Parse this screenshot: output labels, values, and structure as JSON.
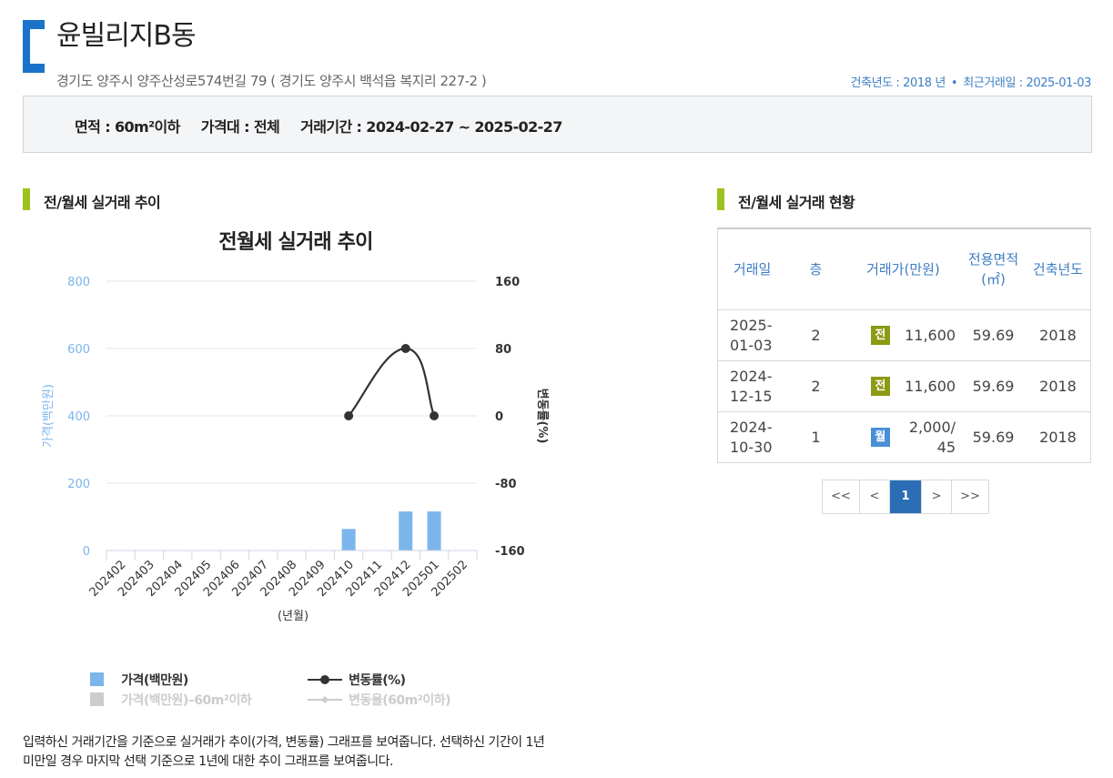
{
  "header": {
    "title": "윤빌리지B동",
    "address": "경기도 양주시 양주산성로574번길 79 ( 경기도 양주시 백석읍 복지리 227-2 )",
    "built_year": "건축년도 : 2018 년",
    "separator": "•",
    "last_trade": "최근거래일 : 2025-01-03"
  },
  "filter": {
    "area": "면적 :  60m²이하",
    "price": "가격대 :  전체",
    "period": "거래기간 :  2024-02-27 ~ 2025-02-27"
  },
  "trend_section": {
    "heading": "전/월세 실거래 추이",
    "chart_title": "전월세 실거래 추이"
  },
  "chart_data": {
    "type": "bar",
    "title": "전월세 실거래 추이",
    "categories": [
      "202402",
      "202403",
      "202404",
      "202405",
      "202406",
      "202407",
      "202408",
      "202409",
      "202410",
      "202411",
      "202412",
      "202501",
      "202502"
    ],
    "xlabel": "(년월)",
    "ylabel": "가격(백만원)",
    "y2label": "변동률(%)",
    "ylim": [
      0,
      800
    ],
    "yticks": [
      "800",
      "600",
      "400",
      "200",
      "0"
    ],
    "y2lim": [
      -160,
      160
    ],
    "y2ticks": [
      "160",
      "80",
      "0",
      "-80",
      "-160"
    ],
    "series": [
      {
        "name": "가격(백만원)",
        "type": "bar",
        "color": "#7cb5ec",
        "values": [
          null,
          null,
          null,
          null,
          null,
          null,
          null,
          null,
          64,
          null,
          116,
          116,
          null
        ]
      },
      {
        "name": "변동률(%)",
        "type": "line",
        "axis": "right",
        "color": "#333333",
        "values": [
          null,
          null,
          null,
          null,
          null,
          null,
          null,
          null,
          0,
          null,
          80,
          0,
          null
        ]
      }
    ],
    "legend": [
      {
        "label": "가격(백만원)",
        "color": "#7cb5ec",
        "kind": "square"
      },
      {
        "label": "변동률(%)",
        "color": "#333333",
        "kind": "line"
      },
      {
        "label": "가격(백만원)–60m²이하",
        "color": "#cccccc",
        "kind": "square"
      },
      {
        "label": "변동율(60m²이하)",
        "color": "#cccccc",
        "kind": "line"
      }
    ],
    "legend_position": "bottom-left",
    "grid": true
  },
  "status_section": {
    "heading": "전/월세 실거래 현황",
    "columns": [
      "거래일",
      "층",
      "거래가(만원)",
      "전용면적(㎡)",
      "건축년도"
    ],
    "rows": [
      {
        "date": "2025-01-03",
        "floor": "2",
        "type": "전",
        "type_color": "#8c9a14",
        "price": "11,600",
        "area": "59.69",
        "year": "2018"
      },
      {
        "date": "2024-12-15",
        "floor": "2",
        "type": "전",
        "type_color": "#8c9a14",
        "price": "11,600",
        "area": "59.69",
        "year": "2018"
      },
      {
        "date": "2024-10-30",
        "floor": "1",
        "type": "월",
        "type_color": "#4a8fd6",
        "price": "2,000/45",
        "area": "59.69",
        "year": "2018"
      }
    ]
  },
  "pagination": {
    "first": "<<",
    "prev": "<",
    "current": "1",
    "next": ">",
    "last": ">>"
  },
  "footnote": "입력하신 거래기간을 기준으로 실거래가 추이(가격, 변동률) 그래프를 보여줍니다. 선택하신 기간이 1년 미만일 경우 마지막 선택 기준으로 1년에 대한 추이 그래프를 보여줍니다.",
  "colors": {
    "accent_blue": "#1a73c8",
    "section_bar": "#9cc31d",
    "page_active": "#2b6eb5"
  }
}
